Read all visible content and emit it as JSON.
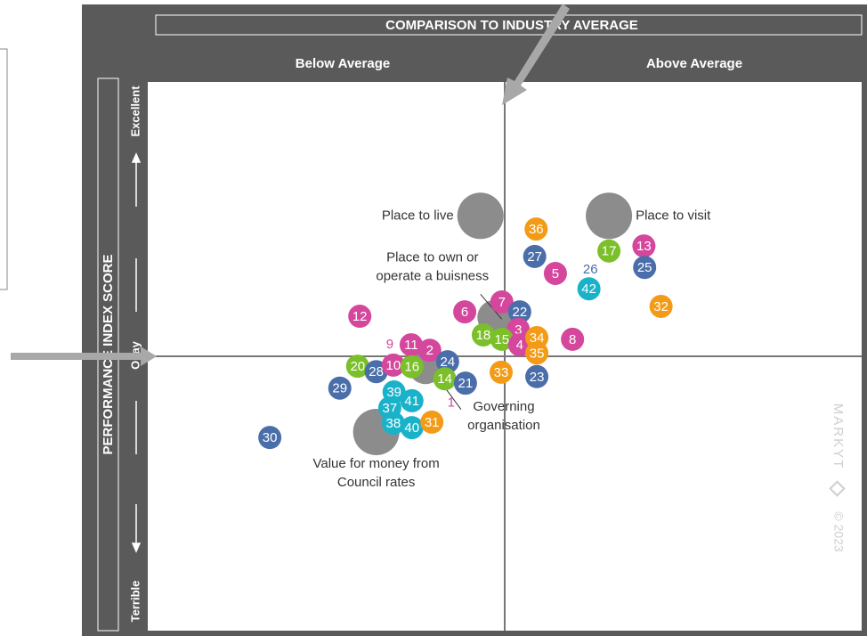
{
  "chart_data": {
    "type": "bubble",
    "title": "COMPARISON TO INDUSTRY AVERAGE",
    "quadrant_labels": [
      "Below Average",
      "Above Average"
    ],
    "ylabel": "PERFORMANCE INDEX SCORE",
    "y_levels": [
      "Excellent",
      "Okay",
      "Terrible"
    ],
    "watermark": [
      "MARKYT",
      "© 2023"
    ],
    "xlim": [
      0,
      100
    ],
    "ylim": [
      0,
      100
    ],
    "points": [
      {
        "label": [
          "Place to live"
        ],
        "color": "#8c8c8c",
        "x": 46.6,
        "y": 75.6,
        "size": 2,
        "label_position": "left"
      },
      {
        "label": [
          "Place to visit"
        ],
        "color": "#8c8c8c",
        "x": 64.6,
        "y": 75.6,
        "size": 2,
        "label_position": "right"
      },
      {
        "label": [
          "Place to own or",
          "operate a buisness"
        ],
        "color": "#8c8c8c",
        "x": 48.6,
        "y": 57.1,
        "size": 1.5,
        "label_position": "above-left"
      },
      {
        "label": [
          "Governing",
          "organisation"
        ],
        "color": "#8c8c8c",
        "x": 38.9,
        "y": 48.1,
        "size": 1.5,
        "label_position": "below-right"
      },
      {
        "label": [
          "Value for money from",
          "Council rates"
        ],
        "color": "#8c8c8c",
        "x": 32.0,
        "y": 36.2,
        "size": 2,
        "label_position": "below"
      },
      {
        "label": [
          "36"
        ],
        "color": "#f39b17",
        "x": 54.4,
        "y": 73.2,
        "size": 1
      },
      {
        "label": [
          "27"
        ],
        "color": "#4a6ea9",
        "x": 54.2,
        "y": 68.2,
        "size": 1
      },
      {
        "label": [
          "5"
        ],
        "color": "#d4479c",
        "x": 57.1,
        "y": 65.1,
        "size": 1
      },
      {
        "label": [
          "17"
        ],
        "color": "#7bbf2a",
        "x": 64.6,
        "y": 69.2,
        "size": 1
      },
      {
        "label": [
          "13"
        ],
        "color": "#d4479c",
        "x": 69.5,
        "y": 70.1,
        "size": 1
      },
      {
        "label": [
          "25"
        ],
        "color": "#4a6ea9",
        "x": 69.6,
        "y": 66.2,
        "size": 1
      },
      {
        "label": [
          "26"
        ],
        "color": "#4a6ea9",
        "x": 62.0,
        "y": 65.9,
        "size": 0
      },
      {
        "label": [
          "42"
        ],
        "color": "#19b2c9",
        "x": 61.8,
        "y": 62.3,
        "size": 1
      },
      {
        "label": [
          "32"
        ],
        "color": "#f39b17",
        "x": 71.9,
        "y": 59.1,
        "size": 1
      },
      {
        "label": [
          "7"
        ],
        "color": "#d4479c",
        "x": 49.6,
        "y": 59.9,
        "size": 1
      },
      {
        "label": [
          "6"
        ],
        "color": "#d4479c",
        "x": 44.4,
        "y": 58.1,
        "size": 1
      },
      {
        "label": [
          "22"
        ],
        "color": "#4a6ea9",
        "x": 52.1,
        "y": 58.1,
        "size": 1
      },
      {
        "label": [
          "12"
        ],
        "color": "#d4479c",
        "x": 29.7,
        "y": 57.3,
        "size": 1
      },
      {
        "label": [
          "3"
        ],
        "color": "#d4479c",
        "x": 51.9,
        "y": 54.9,
        "size": 1
      },
      {
        "label": [
          "18"
        ],
        "color": "#7bbf2a",
        "x": 47.0,
        "y": 53.9,
        "size": 1
      },
      {
        "label": [
          "15"
        ],
        "color": "#7bbf2a",
        "x": 49.6,
        "y": 53.1,
        "size": 1
      },
      {
        "label": [
          "4"
        ],
        "color": "#d4479c",
        "x": 52.1,
        "y": 52.1,
        "size": 1
      },
      {
        "label": [
          "34"
        ],
        "color": "#f39b17",
        "x": 54.5,
        "y": 53.4,
        "size": 1
      },
      {
        "label": [
          "35"
        ],
        "color": "#f39b17",
        "x": 54.5,
        "y": 50.6,
        "size": 1
      },
      {
        "label": [
          "8"
        ],
        "color": "#d4479c",
        "x": 59.5,
        "y": 53.1,
        "size": 1
      },
      {
        "label": [
          "9"
        ],
        "color": "#d4479c",
        "x": 33.9,
        "y": 52.3,
        "size": 0
      },
      {
        "label": [
          "11"
        ],
        "color": "#d4479c",
        "x": 36.9,
        "y": 52.1,
        "size": 1
      },
      {
        "label": [
          "2"
        ],
        "color": "#d4479c",
        "x": 39.5,
        "y": 51.1,
        "size": 1
      },
      {
        "label": [
          "24"
        ],
        "color": "#4a6ea9",
        "x": 42.0,
        "y": 49.0,
        "size": 1
      },
      {
        "label": [
          "20"
        ],
        "color": "#7bbf2a",
        "x": 29.4,
        "y": 48.2,
        "size": 1
      },
      {
        "label": [
          "28"
        ],
        "color": "#4a6ea9",
        "x": 32.0,
        "y": 47.2,
        "size": 1
      },
      {
        "label": [
          "10"
        ],
        "color": "#d4479c",
        "x": 34.4,
        "y": 48.4,
        "size": 1
      },
      {
        "label": [
          "16"
        ],
        "color": "#7bbf2a",
        "x": 37.0,
        "y": 48.1,
        "size": 1
      },
      {
        "label": [
          "33"
        ],
        "color": "#f39b17",
        "x": 49.5,
        "y": 47.1,
        "size": 1
      },
      {
        "label": [
          "23"
        ],
        "color": "#4a6ea9",
        "x": 54.5,
        "y": 46.3,
        "size": 1
      },
      {
        "label": [
          "14"
        ],
        "color": "#7bbf2a",
        "x": 41.6,
        "y": 45.9,
        "size": 1
      },
      {
        "label": [
          "21"
        ],
        "color": "#4a6ea9",
        "x": 44.5,
        "y": 45.1,
        "size": 1
      },
      {
        "label": [
          "1"
        ],
        "color": "#d4479c",
        "x": 42.5,
        "y": 41.6,
        "size": 0
      },
      {
        "label": [
          "29"
        ],
        "color": "#4a6ea9",
        "x": 26.9,
        "y": 44.2,
        "size": 1
      },
      {
        "label": [
          "39"
        ],
        "color": "#19b2c9",
        "x": 34.5,
        "y": 43.5,
        "size": 1
      },
      {
        "label": [
          "41"
        ],
        "color": "#19b2c9",
        "x": 37.0,
        "y": 41.9,
        "size": 1
      },
      {
        "label": [
          "37"
        ],
        "color": "#19b2c9",
        "x": 33.9,
        "y": 40.6,
        "size": 1
      },
      {
        "label": [
          "38"
        ],
        "color": "#19b2c9",
        "x": 34.4,
        "y": 37.8,
        "size": 1
      },
      {
        "label": [
          "40"
        ],
        "color": "#19b2c9",
        "x": 37.0,
        "y": 37.0,
        "size": 1
      },
      {
        "label": [
          "31"
        ],
        "color": "#f39b17",
        "x": 39.8,
        "y": 38.0,
        "size": 1
      },
      {
        "label": [
          "30"
        ],
        "color": "#4a6ea9",
        "x": 17.1,
        "y": 35.2,
        "size": 1
      }
    ]
  }
}
